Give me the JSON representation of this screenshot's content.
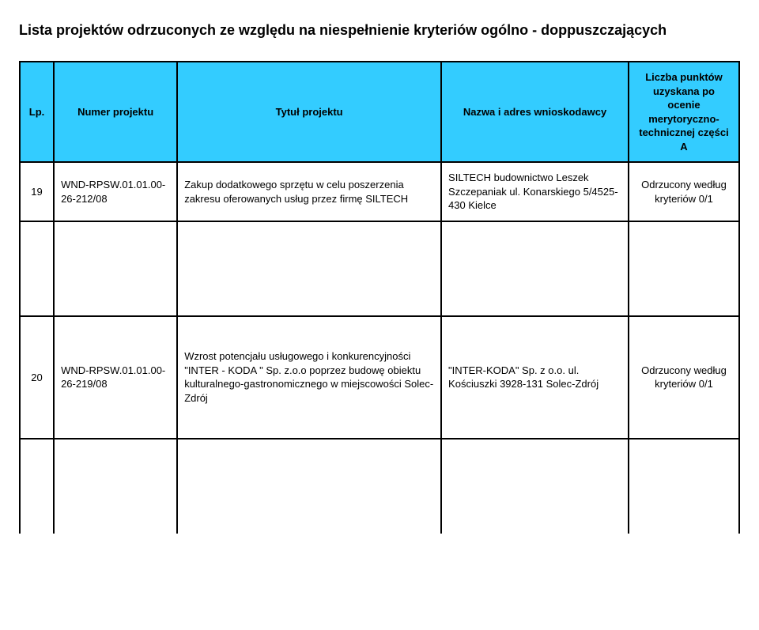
{
  "page": {
    "title": "Lista projektów odrzuconych ze względu na niespełnienie kryteriów ogólno - doppuszczających"
  },
  "header": {
    "bg_color": "#33ccff",
    "columns": {
      "lp": "Lp.",
      "numer": "Numer projektu",
      "tytul": "Tytuł projektu",
      "nazwa": "Nazwa i adres wnioskodawcy",
      "punkty": "Liczba punktów uzyskana po ocenie merytoryczno-technicznej części A"
    }
  },
  "rows": [
    {
      "lp": "19",
      "numer": "WND-RPSW.01.01.00-26-212/08",
      "tytul": "Zakup dodatkowego sprzętu w celu poszerzenia zakresu oferowanych usług przez firmę SILTECH",
      "nazwa": "SILTECH budownictwo Leszek Szczepaniak ul. Konarskiego 5/4525-430 Kielce",
      "punkty": "Odrzucony według kryteriów 0/1"
    },
    {
      "lp": "20",
      "numer": "WND-RPSW.01.01.00-26-219/08",
      "tytul": "Wzrost potencjału usługowego i konkurencyjności \"INTER - KODA \" Sp. z.o.o poprzez budowę obiektu kulturalnego-gastronomicznego w miejscowości Solec-Zdrój",
      "nazwa": "\"INTER-KODA\" Sp. z o.o. ul. Kościuszki 3928-131 Solec-Zdrój",
      "punkty": "Odrzucony według kryteriów 0/1"
    }
  ]
}
